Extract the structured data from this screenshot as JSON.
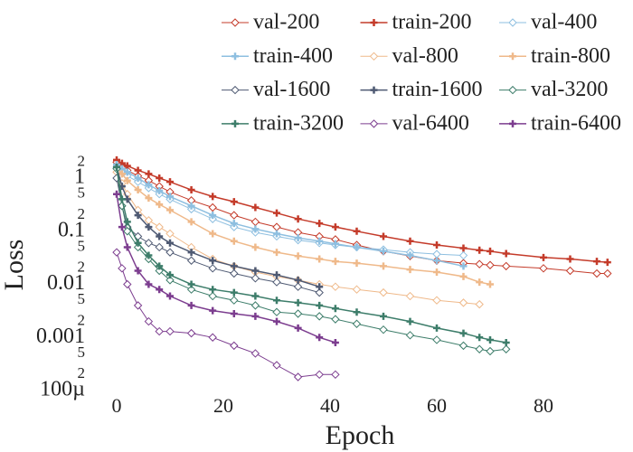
{
  "chart_data": {
    "type": "line",
    "log_y": true,
    "grid": false,
    "legend": "top",
    "xlabel": "Epoch",
    "ylabel": "Loss",
    "xlim": [
      -5,
      93
    ],
    "xticks": [
      0,
      20,
      40,
      60,
      80
    ],
    "ylim": [
      0.0001,
      3
    ],
    "yticks": [
      2,
      1,
      {
        "value": 0.5,
        "label": "5"
      },
      {
        "value": 0.2,
        "label": "2"
      },
      0.1,
      {
        "value": 0.05,
        "label": "5"
      },
      {
        "value": 0.02,
        "label": "2"
      },
      0.01,
      {
        "value": 0.005,
        "label": "5"
      },
      {
        "value": 0.002,
        "label": "2"
      },
      0.001,
      {
        "value": 0.0005,
        "label": "5"
      },
      {
        "value": 0.0002,
        "label": "2"
      },
      {
        "value": 0.0001,
        "label": "100µ"
      }
    ],
    "x": [
      0,
      1,
      2,
      4,
      6,
      8,
      10,
      14,
      18,
      22,
      26,
      30,
      34,
      38,
      41,
      45,
      50,
      55,
      60,
      65,
      68,
      70,
      73,
      80,
      85,
      90,
      92
    ],
    "series": [
      {
        "name": "val-200",
        "color": "#c43b2a",
        "marker": "diamond",
        "values": [
          2.0,
          1.6,
          1.4,
          1.1,
          0.9,
          0.7,
          0.55,
          0.38,
          0.28,
          0.2,
          0.15,
          0.12,
          0.095,
          0.08,
          0.07,
          0.055,
          0.042,
          0.034,
          0.028,
          0.025,
          0.024,
          0.023,
          0.022,
          0.02,
          0.018,
          0.016,
          0.016
        ]
      },
      {
        "name": "train-200",
        "color": "#c43b2a",
        "marker": "plus",
        "values": [
          2.2,
          1.9,
          1.7,
          1.4,
          1.2,
          1.0,
          0.85,
          0.6,
          0.45,
          0.36,
          0.28,
          0.22,
          0.17,
          0.14,
          0.12,
          0.1,
          0.08,
          0.065,
          0.055,
          0.048,
          0.044,
          0.042,
          0.038,
          0.032,
          0.03,
          0.027,
          0.026
        ]
      },
      {
        "name": "val-400",
        "color": "#8ebfe0",
        "marker": "diamond",
        "values": [
          1.6,
          1.3,
          1.1,
          0.85,
          0.65,
          0.5,
          0.4,
          0.26,
          0.17,
          0.12,
          0.095,
          0.08,
          0.068,
          0.06,
          0.055,
          0.05,
          0.045,
          0.04,
          0.037,
          0.035,
          null,
          null,
          null,
          null,
          null,
          null,
          null
        ]
      },
      {
        "name": "train-400",
        "color": "#8ebfe0",
        "marker": "plus",
        "values": [
          1.8,
          1.5,
          1.3,
          1.0,
          0.75,
          0.58,
          0.45,
          0.3,
          0.2,
          0.14,
          0.11,
          0.09,
          0.075,
          0.065,
          0.058,
          0.05,
          0.042,
          0.035,
          0.028,
          0.022,
          null,
          null,
          null,
          null,
          null,
          null,
          null
        ]
      },
      {
        "name": "val-800",
        "color": "#efb98a",
        "marker": "diamond",
        "values": [
          1.3,
          0.8,
          0.5,
          0.25,
          0.16,
          0.12,
          0.09,
          0.05,
          0.03,
          0.022,
          0.017,
          0.014,
          0.012,
          0.01,
          0.009,
          0.008,
          0.007,
          0.006,
          0.005,
          0.0045,
          0.0042,
          null,
          null,
          null,
          null,
          null,
          null
        ]
      },
      {
        "name": "train-800",
        "color": "#efb98a",
        "marker": "plus",
        "values": [
          1.6,
          1.2,
          0.9,
          0.6,
          0.42,
          0.32,
          0.25,
          0.15,
          0.09,
          0.065,
          0.05,
          0.04,
          0.034,
          0.03,
          0.027,
          0.025,
          0.022,
          0.019,
          0.017,
          0.014,
          0.011,
          0.01,
          null,
          null,
          null,
          null,
          null
        ]
      },
      {
        "name": "val-1600",
        "color": "#4f5a73",
        "marker": "diamond",
        "values": [
          1.0,
          0.3,
          0.12,
          0.08,
          0.06,
          0.05,
          0.04,
          0.028,
          0.02,
          0.016,
          0.013,
          0.011,
          0.009,
          0.007,
          null,
          null,
          null,
          null,
          null,
          null,
          null,
          null,
          null,
          null,
          null,
          null,
          null
        ]
      },
      {
        "name": "train-1600",
        "color": "#4f5a73",
        "marker": "plus",
        "values": [
          1.6,
          0.7,
          0.4,
          0.2,
          0.12,
          0.08,
          0.06,
          0.04,
          0.028,
          0.022,
          0.018,
          0.015,
          0.012,
          0.009,
          null,
          null,
          null,
          null,
          null,
          null,
          null,
          null,
          null,
          null,
          null,
          null,
          null
        ]
      },
      {
        "name": "val-3200",
        "color": "#3d7d6a",
        "marker": "diamond",
        "values": [
          1.5,
          0.3,
          0.1,
          0.05,
          0.03,
          0.018,
          0.012,
          0.008,
          0.006,
          0.005,
          0.004,
          0.003,
          0.0028,
          0.0025,
          0.0022,
          0.0018,
          0.0014,
          0.0011,
          0.0009,
          0.0007,
          0.0006,
          0.00055,
          0.0006,
          null,
          null,
          null,
          null
        ]
      },
      {
        "name": "train-3200",
        "color": "#3d7d6a",
        "marker": "plus",
        "values": [
          1.6,
          0.4,
          0.15,
          0.06,
          0.035,
          0.022,
          0.015,
          0.01,
          0.008,
          0.007,
          0.006,
          0.005,
          0.0045,
          0.004,
          0.0035,
          0.003,
          0.0025,
          0.002,
          0.0015,
          0.0012,
          0.001,
          0.0009,
          0.0008,
          null,
          null,
          null,
          null
        ]
      },
      {
        "name": "val-6400",
        "color": "#7c3d8f",
        "marker": "diamond",
        "values": [
          0.04,
          0.02,
          0.01,
          0.004,
          0.002,
          0.0013,
          0.0013,
          0.0012,
          0.001,
          0.0007,
          0.0005,
          0.0003,
          0.00018,
          0.0002,
          0.0002,
          null,
          null,
          null,
          null,
          null,
          null,
          null,
          null,
          null,
          null,
          null,
          null
        ]
      },
      {
        "name": "train-6400",
        "color": "#7c3d8f",
        "marker": "plus",
        "values": [
          0.5,
          0.12,
          0.05,
          0.018,
          0.01,
          0.008,
          0.006,
          0.004,
          0.0032,
          0.0028,
          0.0025,
          0.002,
          0.0015,
          0.001,
          0.0008,
          null,
          null,
          null,
          null,
          null,
          null,
          null,
          null,
          null,
          null,
          null,
          null
        ]
      }
    ]
  }
}
